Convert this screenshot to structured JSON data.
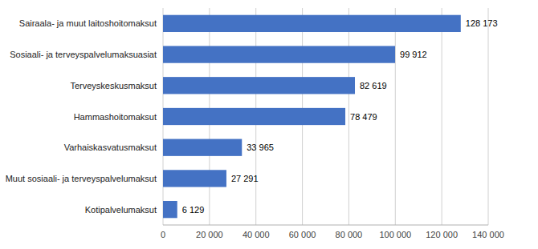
{
  "chart_data": {
    "type": "bar",
    "orientation": "horizontal",
    "categories": [
      "Kotipalvelumaksut",
      "Muut sosiaali- ja terveyspalvelumaksut",
      "Varhaiskasvatusmaksut",
      "Hammashoitomaksut",
      "Terveyskeskusmaksut",
      "Sosiaali- ja terveyspalvelumaksuasiat",
      "Sairaala- ja muut laitoshoitomaksut"
    ],
    "values": [
      6129,
      27291,
      33965,
      78479,
      82619,
      99912,
      128173
    ],
    "value_labels": [
      "6 129",
      "27 291",
      "33 965",
      "78 479",
      "82 619",
      "99 912",
      "128 173"
    ],
    "data_labels": true,
    "color": "#4472C4",
    "xlim": [
      0,
      140000
    ],
    "xticks": [
      0,
      {
        "value": 20000,
        "label": "20 000"
      },
      {
        "value": 40000,
        "label": "40 000"
      },
      {
        "value": 60000,
        "label": "60 000"
      },
      {
        "value": 80000,
        "label": "80 000"
      },
      {
        "value": 100000,
        "label": "100 000"
      },
      {
        "value": 120000,
        "label": "120 000"
      },
      {
        "value": 140000,
        "label": "140 000"
      }
    ],
    "grid": true
  }
}
